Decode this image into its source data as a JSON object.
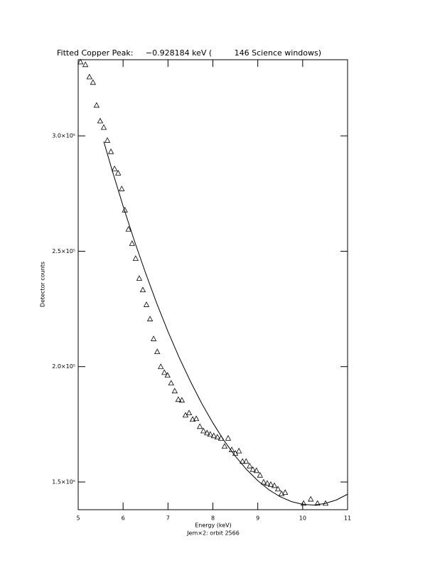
{
  "chart_data": {
    "type": "scatter",
    "title": "Fitted Copper Peak:     −0.928184 keV (         146 Science windows)",
    "x_label": "Energy (keV)",
    "subtitle": "Jem×2: orbit 2566",
    "y_label": "Detector counts",
    "xlim": [
      5,
      11
    ],
    "xticks": [
      5,
      6,
      7,
      8,
      9,
      10,
      11
    ],
    "ylim": [
      138000,
      333000
    ],
    "yticks": [
      {
        "value": 150000,
        "label": "1.5×10⁵"
      },
      {
        "value": 200000,
        "label": "2.0×10⁵"
      },
      {
        "value": 250000,
        "label": "2.5×10⁵"
      },
      {
        "value": 300000,
        "label": "3.0×10⁵"
      }
    ],
    "series": [
      {
        "color": "#000000",
        "marker": "triangle",
        "x": [
          5.05,
          5.16,
          5.25,
          5.33,
          5.41,
          5.49,
          5.57,
          5.65,
          5.73,
          5.81,
          5.89,
          5.97,
          6.04,
          6.12,
          6.2,
          6.28,
          6.36,
          6.44,
          6.52,
          6.6,
          6.68,
          6.76,
          6.84,
          6.92,
          6.99,
          7.07,
          7.15,
          7.23,
          7.31,
          7.39,
          7.47,
          7.55,
          7.63,
          7.71,
          7.79,
          7.87,
          7.94,
          8.02,
          8.1,
          8.18,
          8.26,
          8.34,
          8.42,
          8.5,
          8.58,
          8.66,
          8.74,
          8.82,
          8.89,
          8.97,
          9.05,
          9.13,
          9.21,
          9.29,
          9.37,
          9.45,
          9.53,
          9.61,
          10.02,
          10.18,
          10.33,
          10.51
        ],
        "values": [
          332100,
          330900,
          325600,
          323200,
          313300,
          306500,
          303700,
          298100,
          293200,
          285800,
          283900,
          277100,
          267900,
          259600,
          253400,
          246900,
          238300,
          233300,
          226900,
          220700,
          212100,
          206500,
          200000,
          197500,
          196300,
          192900,
          189500,
          185800,
          185500,
          179000,
          180000,
          177200,
          177500,
          174100,
          172200,
          171300,
          170700,
          170100,
          169500,
          169000,
          165500,
          169000,
          164000,
          162500,
          163500,
          159000,
          159000,
          157000,
          155500,
          155000,
          153000,
          150000,
          149500,
          149000,
          148500,
          147000,
          145000,
          145500,
          140800,
          142600,
          140800,
          140800
        ]
      },
      {
        "color": "#000000",
        "marker": "line",
        "x": [
          5.57,
          5.75,
          6.0,
          6.25,
          6.5,
          6.75,
          7.0,
          7.25,
          7.5,
          7.75,
          8.0,
          8.25,
          8.5,
          8.75,
          9.0,
          9.25,
          9.5,
          9.75,
          10.0,
          10.25,
          10.5,
          10.75,
          11.0
        ],
        "values": [
          297500,
          285500,
          269600,
          254600,
          240600,
          227400,
          215200,
          203900,
          193600,
          184100,
          175600,
          167900,
          161200,
          155400,
          150600,
          146600,
          143600,
          141500,
          140300,
          140000,
          140700,
          142200,
          144700
        ]
      }
    ]
  }
}
